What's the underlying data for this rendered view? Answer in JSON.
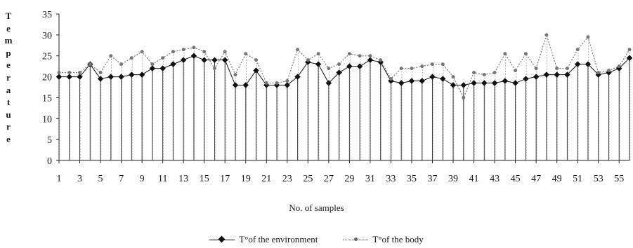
{
  "chart_data": {
    "type": "line",
    "ylabel": "Temperature",
    "xlabel": "No. of samples",
    "ylim": [
      0,
      35
    ],
    "yticks": [
      "0",
      "5",
      "10",
      "15",
      "20",
      "25",
      "30",
      "35"
    ],
    "x": [
      1,
      2,
      3,
      4,
      5,
      6,
      7,
      8,
      9,
      10,
      11,
      12,
      13,
      14,
      15,
      16,
      17,
      18,
      19,
      20,
      21,
      22,
      23,
      24,
      25,
      26,
      27,
      28,
      29,
      30,
      31,
      32,
      33,
      34,
      35,
      36,
      37,
      38,
      39,
      40,
      41,
      42,
      43,
      44,
      45,
      46,
      47,
      48,
      49,
      50,
      51,
      52,
      53,
      54,
      55,
      56
    ],
    "xtick_labels": [
      "1",
      "3",
      "5",
      "7",
      "9",
      "11",
      "13",
      "15",
      "17",
      "19",
      "21",
      "23",
      "25",
      "27",
      "29",
      "31",
      "33",
      "35",
      "37",
      "39",
      "41",
      "43",
      "45",
      "47",
      "49",
      "51",
      "53",
      "55"
    ],
    "grid": false,
    "legend_placement": "bottom",
    "series": [
      {
        "name": "T°of the environment",
        "color": "#111111",
        "values": [
          20,
          20,
          20,
          23,
          19.5,
          20,
          20,
          20.5,
          20.5,
          22,
          22,
          23,
          24,
          25,
          24,
          24,
          24,
          18,
          18,
          21.5,
          18,
          18,
          18,
          20,
          23.5,
          23,
          18.5,
          21,
          22.5,
          22.5,
          24,
          23.5,
          19,
          18.5,
          19,
          19,
          20,
          19.5,
          18,
          18,
          18.5,
          18.5,
          18.5,
          19,
          18.5,
          19.5,
          20,
          20.5,
          20.5,
          20.5,
          23,
          23,
          20.5,
          21,
          22,
          24.5
        ]
      },
      {
        "name": "T°of the body",
        "color": "#777777",
        "values": [
          21,
          21,
          21,
          23,
          21,
          25,
          23,
          24.5,
          26,
          23,
          24.5,
          26,
          26.5,
          27,
          26,
          22,
          26,
          20.5,
          25.5,
          24,
          18.5,
          18.5,
          19,
          26.5,
          24,
          25.5,
          22,
          23,
          25.5,
          25,
          25,
          24,
          19.5,
          22,
          22,
          22.5,
          23,
          23,
          20,
          15,
          21,
          20.5,
          21,
          25.5,
          21.5,
          25.5,
          22,
          30,
          22,
          22,
          26.5,
          29.5,
          21,
          21.5,
          22.5,
          26.5
        ]
      }
    ]
  }
}
